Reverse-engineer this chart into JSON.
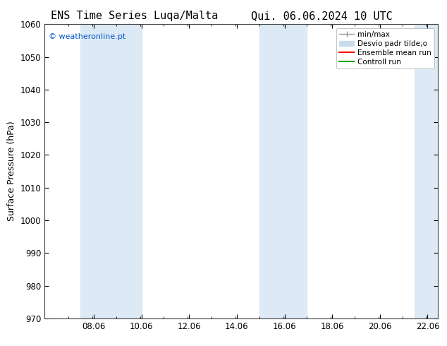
{
  "title": "ENS Time Series Luqa/Malta",
  "title2": "Qui. 06.06.2024 10 UTC",
  "ylabel": "Surface Pressure (hPa)",
  "ylim": [
    970,
    1060
  ],
  "yticks": [
    970,
    980,
    990,
    1000,
    1010,
    1020,
    1030,
    1040,
    1050,
    1060
  ],
  "xlim": [
    6.0,
    22.5
  ],
  "xticks": [
    8.06,
    10.06,
    12.06,
    14.06,
    16.06,
    18.06,
    20.06,
    22.06
  ],
  "xtick_labels": [
    "08.06",
    "10.06",
    "12.06",
    "14.06",
    "16.06",
    "18.06",
    "20.06",
    "22.06"
  ],
  "background_color": "#ffffff",
  "plot_bg_color": "#ffffff",
  "shaded_bands": [
    {
      "xmin": 7.5,
      "xmax": 10.06,
      "color": "#ddeaf5"
    },
    {
      "xmin": 15.0,
      "xmax": 17.0,
      "color": "#ddeaf5"
    },
    {
      "xmin": 21.5,
      "xmax": 22.5,
      "color": "#ddeaf5"
    }
  ],
  "legend_labels": [
    "min/max",
    "Desvio padr tilde;o",
    "Ensemble mean run",
    "Controll run"
  ],
  "legend_colors": [
    "#999999",
    "#c8dcea",
    "#ff0000",
    "#00aa00"
  ],
  "watermark": "© weatheronline.pt",
  "watermark_color": "#0055cc",
  "title_fontsize": 11,
  "axis_label_fontsize": 9,
  "tick_fontsize": 8.5,
  "legend_fontsize": 7.5
}
